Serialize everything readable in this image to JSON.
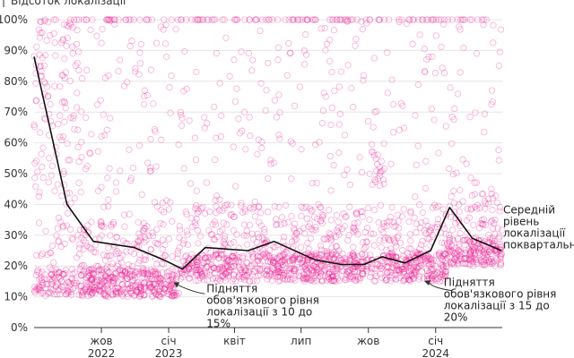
{
  "chart_data": {
    "type": "scatter",
    "ylabel": "Відсоток локалізації",
    "ylim": [
      0,
      100
    ],
    "y_ticks": [
      0,
      10,
      20,
      30,
      40,
      50,
      60,
      70,
      80,
      90,
      100
    ],
    "y_tick_labels": [
      "0%",
      "10%",
      "20%",
      "30%",
      "40%",
      "50%",
      "60%",
      "70%",
      "80%",
      "90%",
      "100%"
    ],
    "xlim": [
      "2022-07-01",
      "2024-04-01"
    ],
    "x_ticks": [
      {
        "date": "2022-10-01",
        "label": "жов",
        "year": "2022"
      },
      {
        "date": "2023-01-01",
        "label": "січ",
        "year": "2023"
      },
      {
        "date": "2023-04-01",
        "label": "квіт",
        "year": ""
      },
      {
        "date": "2023-07-01",
        "label": "лип",
        "year": ""
      },
      {
        "date": "2023-10-01",
        "label": "жов",
        "year": ""
      },
      {
        "date": "2024-01-01",
        "label": "січ",
        "year": "2024"
      }
    ],
    "grid": true,
    "point_color": "#e8168b",
    "line_color": "#111111",
    "series": [
      {
        "name": "Середній рівень локалізації поквартально",
        "points": [
          {
            "x": "2022-07-01",
            "y": 88
          },
          {
            "x": "2022-08-15",
            "y": 40
          },
          {
            "x": "2022-09-20",
            "y": 28
          },
          {
            "x": "2022-11-15",
            "y": 26
          },
          {
            "x": "2022-12-25",
            "y": 22
          },
          {
            "x": "2023-01-20",
            "y": 19
          },
          {
            "x": "2023-02-20",
            "y": 26
          },
          {
            "x": "2023-04-20",
            "y": 25
          },
          {
            "x": "2023-05-25",
            "y": 28
          },
          {
            "x": "2023-07-20",
            "y": 22
          },
          {
            "x": "2023-08-25",
            "y": 20.5
          },
          {
            "x": "2023-09-25",
            "y": 20.5
          },
          {
            "x": "2023-10-20",
            "y": 23
          },
          {
            "x": "2023-11-20",
            "y": 21
          },
          {
            "x": "2023-12-25",
            "y": 25
          },
          {
            "x": "2024-01-20",
            "y": 39
          },
          {
            "x": "2024-02-20",
            "y": 29
          },
          {
            "x": "2024-03-31",
            "y": 25
          }
        ]
      }
    ],
    "annotations": [
      {
        "lines": [
          "Підняття",
          "обов'язкового рівня",
          "локалізації з 10 до",
          "15%"
        ]
      },
      {
        "lines": [
          "Підняття",
          "обов'язкового рівня",
          "локалізації з 15 до",
          "20%"
        ]
      },
      {
        "lines": [
          "Середній",
          "рівень",
          "локалізації",
          "поквартально"
        ]
      }
    ]
  }
}
